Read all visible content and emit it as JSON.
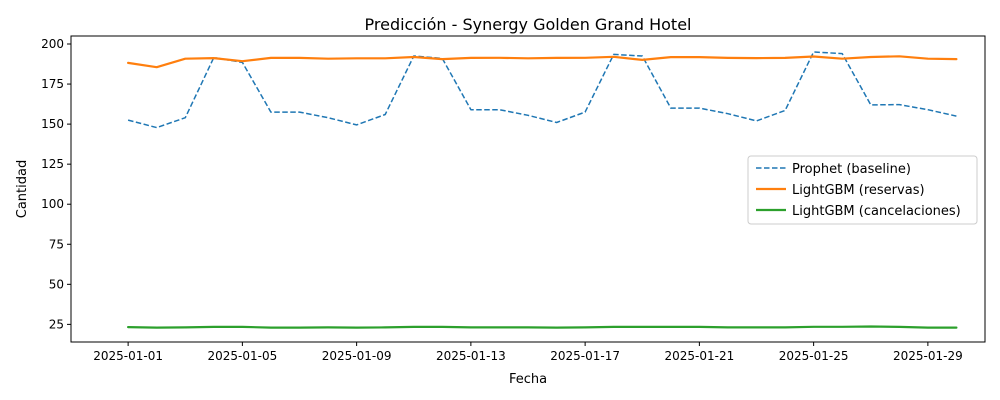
{
  "chart_data": {
    "type": "line",
    "title": "Predicción - Synergy Golden Grand Hotel",
    "xlabel": "Fecha",
    "ylabel": "Cantidad",
    "ylim": [
      14,
      205
    ],
    "x_range": [
      "2024-12-30",
      "2025-01-31"
    ],
    "legend_position": "right",
    "grid": false,
    "x": [
      "2025-01-01",
      "2025-01-02",
      "2025-01-03",
      "2025-01-04",
      "2025-01-05",
      "2025-01-06",
      "2025-01-07",
      "2025-01-08",
      "2025-01-09",
      "2025-01-10",
      "2025-01-11",
      "2025-01-12",
      "2025-01-13",
      "2025-01-14",
      "2025-01-15",
      "2025-01-16",
      "2025-01-17",
      "2025-01-18",
      "2025-01-19",
      "2025-01-20",
      "2025-01-21",
      "2025-01-22",
      "2025-01-23",
      "2025-01-24",
      "2025-01-25",
      "2025-01-26",
      "2025-01-27",
      "2025-01-28",
      "2025-01-29",
      "2025-01-30"
    ],
    "x_ticks": [
      "2025-01-01",
      "2025-01-05",
      "2025-01-09",
      "2025-01-13",
      "2025-01-17",
      "2025-01-21",
      "2025-01-25",
      "2025-01-29"
    ],
    "y_ticks": [
      25,
      50,
      75,
      100,
      125,
      150,
      175,
      200
    ],
    "series": [
      {
        "name": "Prophet (baseline)",
        "color": "#1f77b4",
        "style": "dashed",
        "values": [
          152.5,
          147.8,
          154.0,
          191.5,
          188.5,
          157.5,
          157.5,
          154.0,
          149.5,
          156.0,
          192.5,
          191.0,
          159.0,
          159.0,
          155.5,
          151.0,
          157.5,
          193.5,
          192.5,
          160.0,
          160.0,
          156.5,
          152.0,
          158.5,
          195.0,
          194.0,
          162.0,
          162.2,
          159.0,
          155.0
        ]
      },
      {
        "name": "LightGBM (reservas)",
        "color": "#ff7f0e",
        "style": "solid",
        "values": [
          188.2,
          185.5,
          190.8,
          191.2,
          189.3,
          191.3,
          191.3,
          190.8,
          191.1,
          191.1,
          191.9,
          190.6,
          191.3,
          191.4,
          191.1,
          191.3,
          191.4,
          192.0,
          190.1,
          191.8,
          191.8,
          191.3,
          191.2,
          191.3,
          192.2,
          190.8,
          191.9,
          192.3,
          190.8,
          190.6
        ]
      },
      {
        "name": "LightGBM (cancelaciones)",
        "color": "#2ca02c",
        "style": "solid",
        "values": [
          23.3,
          23.0,
          23.1,
          23.4,
          23.4,
          23.0,
          23.0,
          23.1,
          23.0,
          23.1,
          23.4,
          23.4,
          23.1,
          23.1,
          23.1,
          23.0,
          23.1,
          23.4,
          23.4,
          23.4,
          23.4,
          23.1,
          23.1,
          23.1,
          23.5,
          23.5,
          23.7,
          23.4,
          23.0,
          23.0
        ]
      }
    ]
  }
}
